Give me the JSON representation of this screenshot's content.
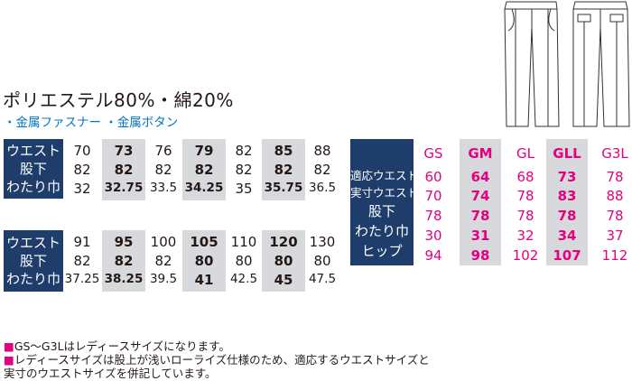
{
  "material": "ポリエステル80%・綿20%",
  "features": "・金属ファスナー ・金属ボタン",
  "mens_table_1": {
    "labels": [
      "ウエスト",
      "股下",
      "わたり巾"
    ],
    "columns": [
      {
        "waist": "70",
        "inseam": "82",
        "thigh": "32",
        "highlight": false
      },
      {
        "waist": "73",
        "inseam": "82",
        "thigh": "32.75",
        "highlight": true
      },
      {
        "waist": "76",
        "inseam": "82",
        "thigh": "33.5",
        "highlight": false
      },
      {
        "waist": "79",
        "inseam": "82",
        "thigh": "34.25",
        "highlight": true
      },
      {
        "waist": "82",
        "inseam": "82",
        "thigh": "35",
        "highlight": false
      },
      {
        "waist": "85",
        "inseam": "82",
        "thigh": "35.75",
        "highlight": true
      },
      {
        "waist": "88",
        "inseam": "82",
        "thigh": "36.5",
        "highlight": false
      }
    ]
  },
  "mens_table_2": {
    "labels": [
      "ウエスト",
      "股下",
      "わたり巾"
    ],
    "columns": [
      {
        "waist": "91",
        "inseam": "82",
        "thigh": "37.25",
        "highlight": false
      },
      {
        "waist": "95",
        "inseam": "82",
        "thigh": "38.25",
        "highlight": true
      },
      {
        "waist": "100",
        "inseam": "82",
        "thigh": "39.5",
        "highlight": false
      },
      {
        "waist": "105",
        "inseam": "80",
        "thigh": "41",
        "highlight": true
      },
      {
        "waist": "110",
        "inseam": "80",
        "thigh": "42.5",
        "highlight": false
      },
      {
        "waist": "120",
        "inseam": "80",
        "thigh": "45",
        "highlight": true
      },
      {
        "waist": "130",
        "inseam": "80",
        "thigh": "47.5",
        "highlight": false
      }
    ]
  },
  "ladies_table": {
    "labels": [
      "適応ウエスト",
      "実寸ウエスト",
      "股下",
      "わたり巾",
      "ヒップ"
    ],
    "columns": [
      {
        "size": "GS",
        "values": [
          "60",
          "70",
          "78",
          "30",
          "94"
        ],
        "highlight": false
      },
      {
        "size": "GM",
        "values": [
          "64",
          "74",
          "78",
          "31",
          "98"
        ],
        "highlight": true
      },
      {
        "size": "GL",
        "values": [
          "68",
          "78",
          "78",
          "32",
          "102"
        ],
        "highlight": false
      },
      {
        "size": "GLL",
        "values": [
          "73",
          "83",
          "78",
          "34",
          "107"
        ],
        "highlight": true
      },
      {
        "size": "G3L",
        "values": [
          "78",
          "88",
          "78",
          "37",
          "112"
        ],
        "highlight": false
      }
    ]
  },
  "notes": [
    "GS～G3Lはレディースサイズになります。",
    "レディースサイズは股上が浅いローライズ仕様のため、適応するウエストサイズと",
    "実寸のウエストサイズを併記しています。"
  ],
  "note_marker": "■",
  "colors": {
    "navy": "#1e3d6b",
    "magenta": "#e4007f",
    "blue": "#0075c2",
    "gray": "#d8d9dd"
  }
}
